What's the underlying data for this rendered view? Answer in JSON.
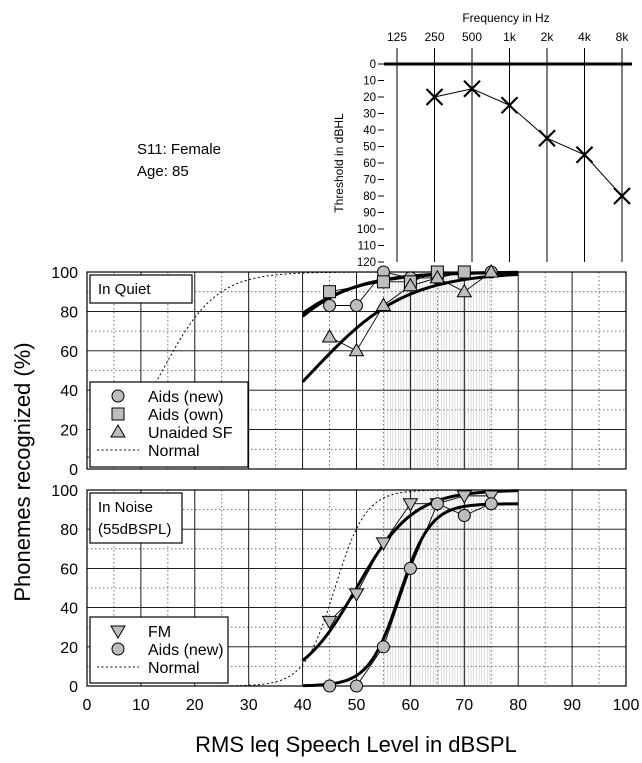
{
  "subject": {
    "line1": "S11: Female",
    "line2": "Age: 85"
  },
  "y_axis_label": "Phonemes recognized (%)",
  "x_axis_label": "RMS leq Speech Level in dBSPL",
  "chart_data": [
    {
      "type": "scatter",
      "panel": "audiogram",
      "title": "Frequency in Hz",
      "xlabel": "Frequency in Hz",
      "ylabel": "Threshold in dBHL",
      "x_tick_labels": [
        "125",
        "250",
        "500",
        "1k",
        "2k",
        "4k",
        "8k"
      ],
      "y_ticks": [
        0,
        10,
        20,
        30,
        40,
        50,
        60,
        70,
        80,
        90,
        100,
        110,
        120
      ],
      "ylim": [
        0,
        120
      ],
      "y_inverted": true,
      "series": [
        {
          "x": [
            "250",
            "500",
            "1k",
            "2k",
            "4k",
            "8k"
          ],
          "values": [
            20,
            15,
            25,
            45,
            55,
            80
          ]
        }
      ]
    },
    {
      "type": "scatter",
      "panel": "quiet",
      "label": "In Quiet",
      "xlim": [
        0,
        100
      ],
      "ylim": [
        0,
        100
      ],
      "y_ticks": [
        0,
        20,
        40,
        60,
        80,
        100
      ],
      "legend_position": "bottom-left",
      "series": [
        {
          "name": "Aids (new)",
          "marker": "circle",
          "x": [
            45,
            50,
            55,
            60,
            65,
            70,
            75
          ],
          "y": [
            83,
            83,
            100,
            97,
            97,
            100,
            100
          ],
          "fit": {
            "x0": 29,
            "k": 0.12
          }
        },
        {
          "name": "Aids (own)",
          "marker": "square",
          "x": [
            45,
            55,
            60,
            65,
            70
          ],
          "y": [
            90,
            95,
            95,
            100,
            100
          ],
          "fit": {
            "x0": 30.5,
            "k": 0.13
          }
        },
        {
          "name": "Unaided SF",
          "marker": "triangle-up",
          "x": [
            45,
            50,
            55,
            60,
            65,
            70,
            75
          ],
          "y": [
            67,
            60,
            83,
            93,
            97,
            90,
            100
          ],
          "fit": {
            "x0": 42,
            "k": 0.115
          }
        },
        {
          "name": "Normal",
          "marker": "none",
          "line": "dotted",
          "fit": {
            "x0": 14,
            "k": 0.2
          }
        }
      ]
    },
    {
      "type": "scatter",
      "panel": "noise",
      "label": "In Noise",
      "label2": "(55dBSPL)",
      "xlim": [
        0,
        100
      ],
      "ylim": [
        0,
        100
      ],
      "y_ticks": [
        0,
        20,
        40,
        60,
        80,
        100
      ],
      "x_ticks": [
        0,
        10,
        20,
        30,
        40,
        50,
        60,
        70,
        80,
        90,
        100
      ],
      "legend_position": "bottom-left",
      "series": [
        {
          "name": "FM",
          "marker": "triangle-down",
          "x": [
            45,
            50,
            55,
            60,
            65,
            70,
            75
          ],
          "y": [
            33,
            47,
            73,
            93,
            93,
            97,
            97
          ],
          "fit": {
            "x0": 50,
            "k": 0.19
          }
        },
        {
          "name": "Aids (new)",
          "marker": "circle",
          "x": [
            45,
            50,
            55,
            60,
            65,
            70,
            75
          ],
          "y": [
            0,
            0,
            20,
            60,
            93,
            87,
            93
          ],
          "fit": {
            "x0": 58,
            "k": 0.35,
            "top": 93
          }
        },
        {
          "name": "Normal",
          "marker": "none",
          "line": "dotted",
          "fit": {
            "x0": 46,
            "k": 0.35
          }
        }
      ]
    }
  ]
}
